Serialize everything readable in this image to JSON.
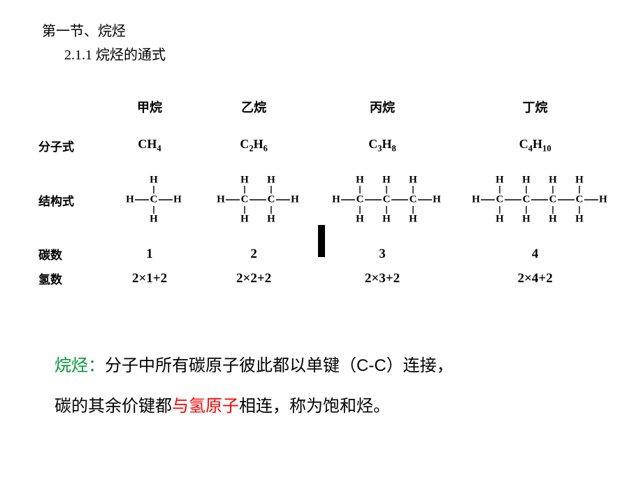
{
  "section_title": "第一节、烷烃",
  "subsection_title": "2.1.1 烷烃的通式",
  "row_labels": {
    "header": "",
    "formula": "分子式",
    "structure": "结构式",
    "carbon": "碳数",
    "hydrogen": "氢数"
  },
  "columns": [
    {
      "name": "甲烷",
      "formula_html": "CH<sub>4</sub>",
      "carbon": "1",
      "hydrogen": "2×1+2",
      "carbons": 1
    },
    {
      "name": "乙烷",
      "formula_html": "C<sub>2</sub>H<sub>6</sub>",
      "carbon": "2",
      "hydrogen": "2×2+2",
      "carbons": 2
    },
    {
      "name": "丙烷",
      "formula_html": "C<sub>3</sub>H<sub>8</sub>",
      "carbon": "3",
      "hydrogen": "2×3+2",
      "carbons": 3
    },
    {
      "name": "丁烷",
      "formula_html": "C<sub>4</sub>H<sub>10</sub>",
      "carbon": "4",
      "hydrogen": "2×4+2",
      "carbons": 4
    }
  ],
  "definition": {
    "term": "烷烃：",
    "part1": "分子中所有碳原子彼此都以单键（",
    "cc": "C-C",
    "part2": "）连接，",
    "part3": "碳的其余价键都",
    "red": "与氢原子",
    "part4": "相连，称为饱和烃。"
  }
}
